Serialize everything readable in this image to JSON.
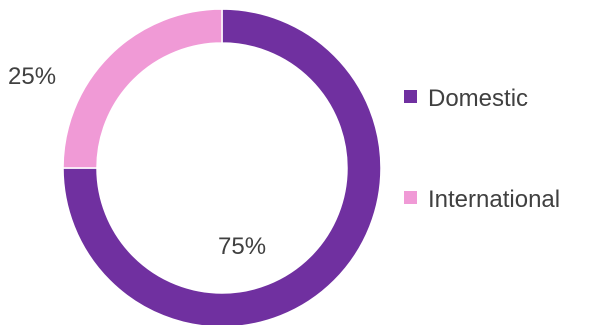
{
  "chart_data": {
    "type": "pie",
    "donut": true,
    "title": "",
    "categories": [
      "Domestic",
      "International"
    ],
    "values": [
      75,
      25
    ],
    "data_labels": [
      "75%",
      "25%"
    ],
    "colors": [
      "#7030A0",
      "#F09AD6"
    ],
    "legend": {
      "placement": "right",
      "entries": [
        "Domestic",
        "International"
      ]
    }
  }
}
